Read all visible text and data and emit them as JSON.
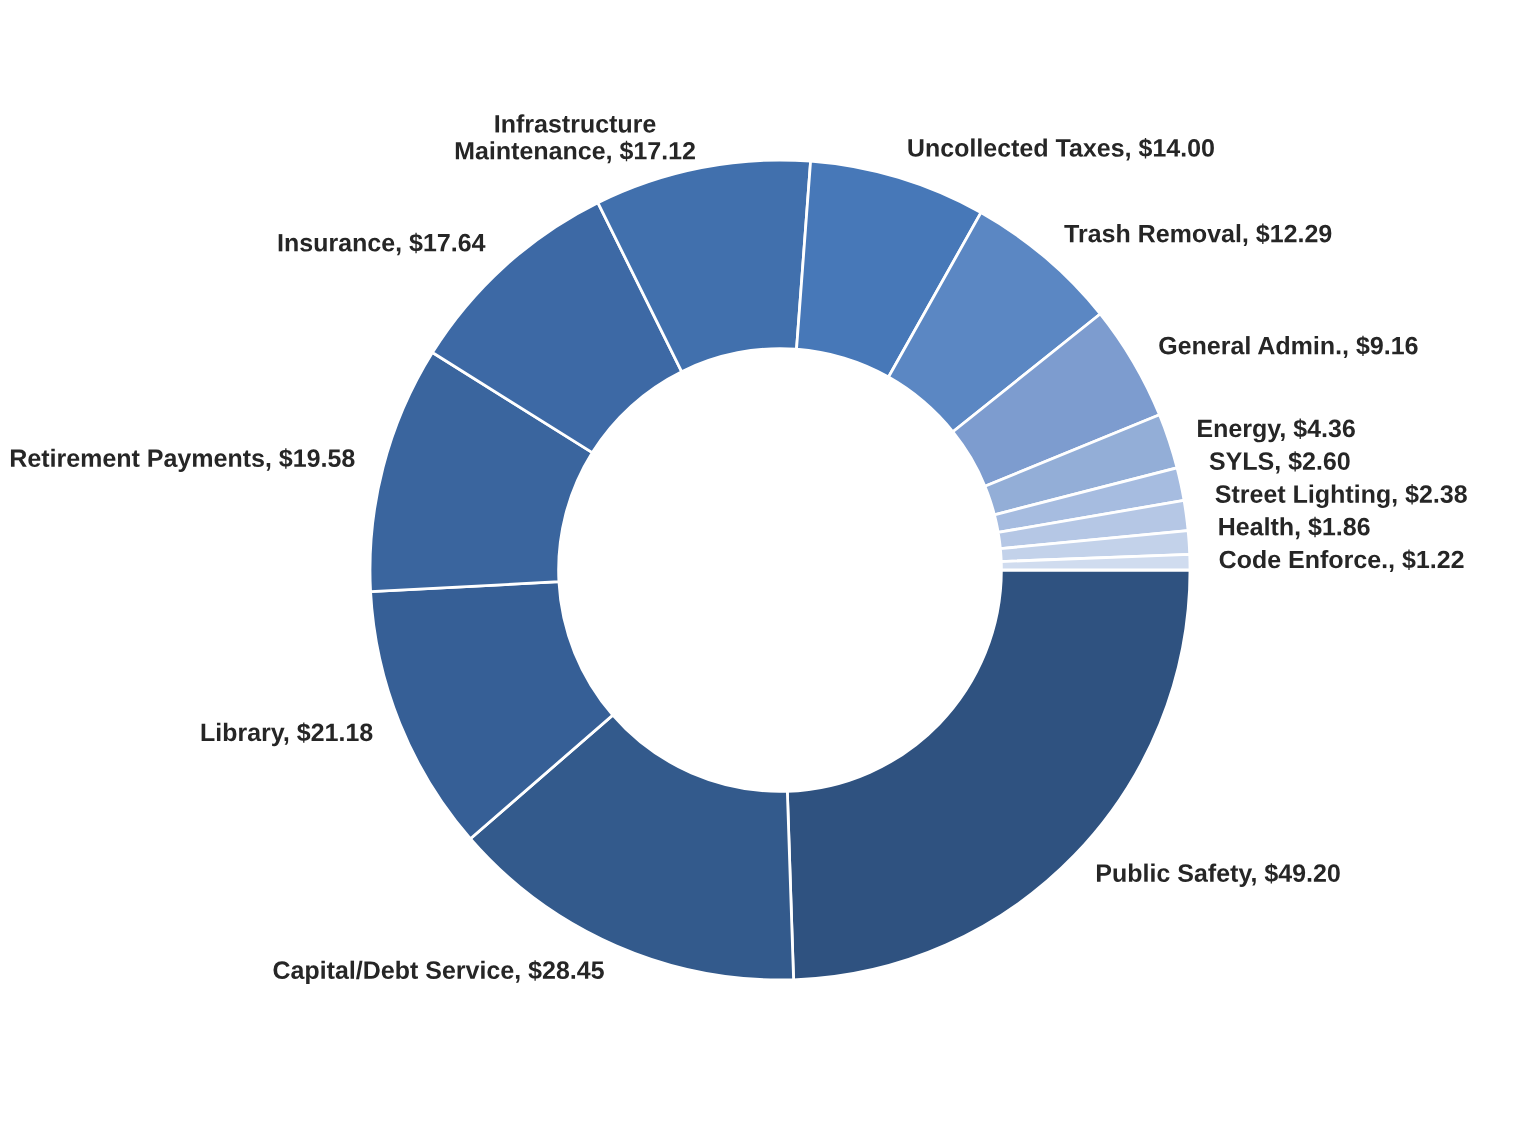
{
  "chart_data": {
    "type": "donut",
    "categories": [
      "Public Safety",
      "Capital/Debt Service",
      "Library",
      "Retirement Payments",
      "Insurance",
      "Infrastructure Maintenance",
      "Uncollected Taxes",
      "Trash Removal",
      "General Admin.",
      "Energy",
      "SYLS",
      "Street Lighting",
      "Health",
      "Code Enforce."
    ],
    "values": [
      49.2,
      28.45,
      21.18,
      19.58,
      17.64,
      17.12,
      14.0,
      12.29,
      9.16,
      4.36,
      2.6,
      2.38,
      1.86,
      1.22
    ],
    "value_labels": [
      "$49.20",
      "$28.45",
      "$21.18",
      "$19.58",
      "$17.64",
      "$17.12",
      "$14.00",
      "$12.29",
      "$9.16",
      "$4.36",
      "$2.60",
      "$2.38",
      "$1.86",
      "$1.22"
    ],
    "colors": [
      "#2f5280",
      "#335a8c",
      "#365f96",
      "#3a659e",
      "#3d69a5",
      "#4170ad",
      "#4778b8",
      "#5b87c3",
      "#7d9ccf",
      "#93aed7",
      "#a6bce0",
      "#b5c7e5",
      "#c3d2ea",
      "#d0dcef"
    ],
    "legend": false
  }
}
